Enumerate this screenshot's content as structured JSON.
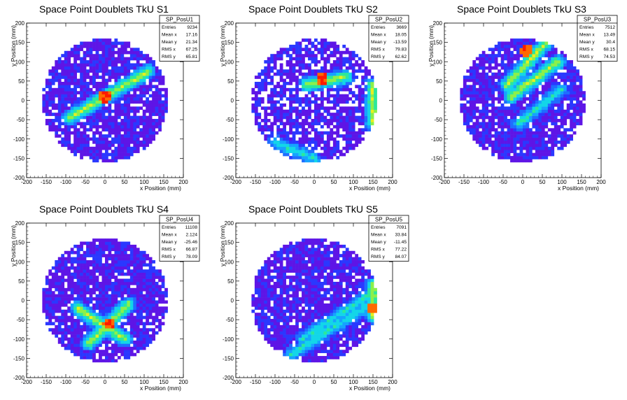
{
  "panels": [
    {
      "title": "Space Point Doublets TkU S1",
      "stats": {
        "name": "SP_PosU1",
        "rows": [
          [
            "Entries",
            "9234"
          ],
          [
            "Mean x",
            "17.16"
          ],
          [
            "Mean y",
            "21.34"
          ],
          [
            "RMS x",
            "67.25"
          ],
          [
            "RMS y",
            "65.81"
          ]
        ]
      }
    },
    {
      "title": "Space Point Doublets TkU S2",
      "stats": {
        "name": "SP_PosU2",
        "rows": [
          [
            "Entries",
            "3669"
          ],
          [
            "Mean x",
            "18.05"
          ],
          [
            "Mean y",
            "-13.59"
          ],
          [
            "RMS x",
            "79.83"
          ],
          [
            "RMS y",
            "62.62"
          ]
        ]
      }
    },
    {
      "title": "Space Point Doublets TkU S3",
      "stats": {
        "name": "SP_PosU3",
        "rows": [
          [
            "Entries",
            "7512"
          ],
          [
            "Mean x",
            "13.49"
          ],
          [
            "Mean y",
            "30.4"
          ],
          [
            "RMS x",
            "68.15"
          ],
          [
            "RMS y",
            "74.53"
          ]
        ]
      }
    },
    {
      "title": "Space Point Doublets TkU S4",
      "stats": {
        "name": "SP_PosU4",
        "rows": [
          [
            "Entries",
            "11108"
          ],
          [
            "Mean x",
            "2.124"
          ],
          [
            "Mean y",
            "-25.46"
          ],
          [
            "RMS x",
            "66.87"
          ],
          [
            "RMS y",
            "78.09"
          ]
        ]
      }
    },
    {
      "title": "Space Point Doublets TkU S5",
      "stats": {
        "name": "SP_PosU5",
        "rows": [
          [
            "Entries",
            "7091"
          ],
          [
            "Mean x",
            "33.84"
          ],
          [
            "Mean y",
            "-11.45"
          ],
          [
            "RMS x",
            "77.22"
          ],
          [
            "RMS y",
            "84.07"
          ]
        ]
      }
    }
  ],
  "chart_data": [
    {
      "type": "heatmap",
      "title": "Space Point Doublets TkU S1",
      "xlabel": "x Position (mm)",
      "ylabel": "y Position (mm)",
      "xlim": [
        -200,
        200
      ],
      "ylim": [
        -200,
        200
      ],
      "xticks": [
        -200,
        -150,
        -100,
        -50,
        0,
        50,
        100,
        150,
        200
      ],
      "yticks": [
        -200,
        -150,
        -100,
        -50,
        0,
        50,
        100,
        150,
        200
      ],
      "active_region": {
        "shape": "circle",
        "center": [
          0,
          0
        ],
        "radius": 160
      },
      "features": [
        {
          "kind": "band",
          "from": [
            -90,
            -45
          ],
          "to": [
            110,
            75
          ],
          "peak": [
            0,
            10
          ],
          "level": "high"
        }
      ],
      "stats": {
        "Entries": 9234,
        "Mean x": 17.16,
        "Mean y": 21.34,
        "RMS x": 67.25,
        "RMS y": 65.81
      }
    },
    {
      "type": "heatmap",
      "title": "Space Point Doublets TkU S2",
      "xlabel": "x Position (mm)",
      "ylabel": "y Position (mm)",
      "xlim": [
        -200,
        200
      ],
      "ylim": [
        -200,
        200
      ],
      "xticks": [
        -200,
        -150,
        -100,
        -50,
        0,
        50,
        100,
        150,
        200
      ],
      "yticks": [
        -200,
        -150,
        -100,
        -50,
        0,
        50,
        100,
        150,
        200
      ],
      "active_region": {
        "shape": "circle",
        "center": [
          0,
          0
        ],
        "radius": 160
      },
      "features": [
        {
          "kind": "band",
          "from": [
            -20,
            40
          ],
          "to": [
            80,
            60
          ],
          "peak": [
            20,
            55
          ],
          "level": "high"
        },
        {
          "kind": "band",
          "from": [
            -100,
            -110
          ],
          "to": [
            0,
            -150
          ],
          "level": "medium"
        },
        {
          "kind": "band",
          "from": [
            150,
            -60
          ],
          "to": [
            150,
            40
          ],
          "level": "high"
        }
      ],
      "stats": {
        "Entries": 3669,
        "Mean x": 18.05,
        "Mean y": -13.59,
        "RMS x": 79.83,
        "RMS y": 62.62
      }
    },
    {
      "type": "heatmap",
      "title": "Space Point Doublets TkU S3",
      "xlabel": "x Position (mm)",
      "ylabel": "y Position (mm)",
      "xlim": [
        -200,
        200
      ],
      "ylim": [
        -200,
        200
      ],
      "xticks": [
        -200,
        -150,
        -100,
        -50,
        0,
        50,
        100,
        150,
        200
      ],
      "yticks": [
        -200,
        -150,
        -100,
        -50,
        0,
        50,
        100,
        150,
        200
      ],
      "active_region": {
        "shape": "circle",
        "center": [
          0,
          0
        ],
        "radius": 160
      },
      "features": [
        {
          "kind": "band",
          "from": [
            -30,
            10
          ],
          "to": [
            90,
            100
          ],
          "level": "high"
        },
        {
          "kind": "band",
          "from": [
            -10,
            -60
          ],
          "to": [
            100,
            30
          ],
          "level": "medium"
        },
        {
          "kind": "band",
          "from": [
            -40,
            40
          ],
          "to": [
            60,
            150
          ],
          "peak": [
            10,
            130
          ],
          "level": "high"
        }
      ],
      "stats": {
        "Entries": 7512,
        "Mean x": 13.49,
        "Mean y": 30.4,
        "RMS x": 68.15,
        "RMS y": 74.53
      }
    },
    {
      "type": "heatmap",
      "title": "Space Point Doublets TkU S4",
      "xlabel": "x Position (mm)",
      "ylabel": "y Position (mm)",
      "xlim": [
        -200,
        200
      ],
      "ylim": [
        -200,
        200
      ],
      "xticks": [
        -200,
        -150,
        -100,
        -50,
        0,
        50,
        100,
        150,
        200
      ],
      "yticks": [
        -200,
        -150,
        -100,
        -50,
        0,
        50,
        100,
        150,
        200
      ],
      "active_region": {
        "shape": "circle",
        "center": [
          0,
          0
        ],
        "radius": 160
      },
      "features": [
        {
          "kind": "band",
          "from": [
            -70,
            -20
          ],
          "to": [
            50,
            -100
          ],
          "peak": [
            10,
            -60
          ],
          "level": "high"
        },
        {
          "kind": "band",
          "from": [
            -40,
            -110
          ],
          "to": [
            60,
            -10
          ],
          "level": "high"
        }
      ],
      "stats": {
        "Entries": 11108,
        "Mean x": 2.124,
        "Mean y": -25.46,
        "RMS x": 66.87,
        "RMS y": 78.09
      }
    },
    {
      "type": "heatmap",
      "title": "Space Point Doublets TkU S5",
      "xlabel": "x Position (mm)",
      "ylabel": "y Position (mm)",
      "xlim": [
        -200,
        200
      ],
      "ylim": [
        -200,
        200
      ],
      "xticks": [
        -200,
        -150,
        -100,
        -50,
        0,
        50,
        100,
        150,
        200
      ],
      "yticks": [
        -200,
        -150,
        -100,
        -50,
        0,
        50,
        100,
        150,
        200
      ],
      "active_region": {
        "shape": "circle",
        "center": [
          0,
          0
        ],
        "radius": 160
      },
      "features": [
        {
          "kind": "band",
          "from": [
            -30,
            -100
          ],
          "to": [
            150,
            20
          ],
          "level": "medium"
        },
        {
          "kind": "band",
          "from": [
            -60,
            -140
          ],
          "to": [
            140,
            -10
          ],
          "level": "medium"
        },
        {
          "kind": "band",
          "from": [
            150,
            -40
          ],
          "to": [
            150,
            40
          ],
          "peak": [
            150,
            -20
          ],
          "level": "high"
        }
      ],
      "stats": {
        "Entries": 7091,
        "Mean x": 33.84,
        "Mean y": -11.45,
        "RMS x": 77.22,
        "RMS y": 84.07
      }
    }
  ],
  "colors": {
    "background": "#ffffff",
    "frame": "#000000",
    "palette": [
      "#4d00d9",
      "#5e15e6",
      "#2a38ff",
      "#1f6dff",
      "#16a3ff",
      "#13d6e8",
      "#2ce89a",
      "#8cf04a",
      "#e6f020",
      "#ff6a00",
      "#ff1a00"
    ]
  }
}
